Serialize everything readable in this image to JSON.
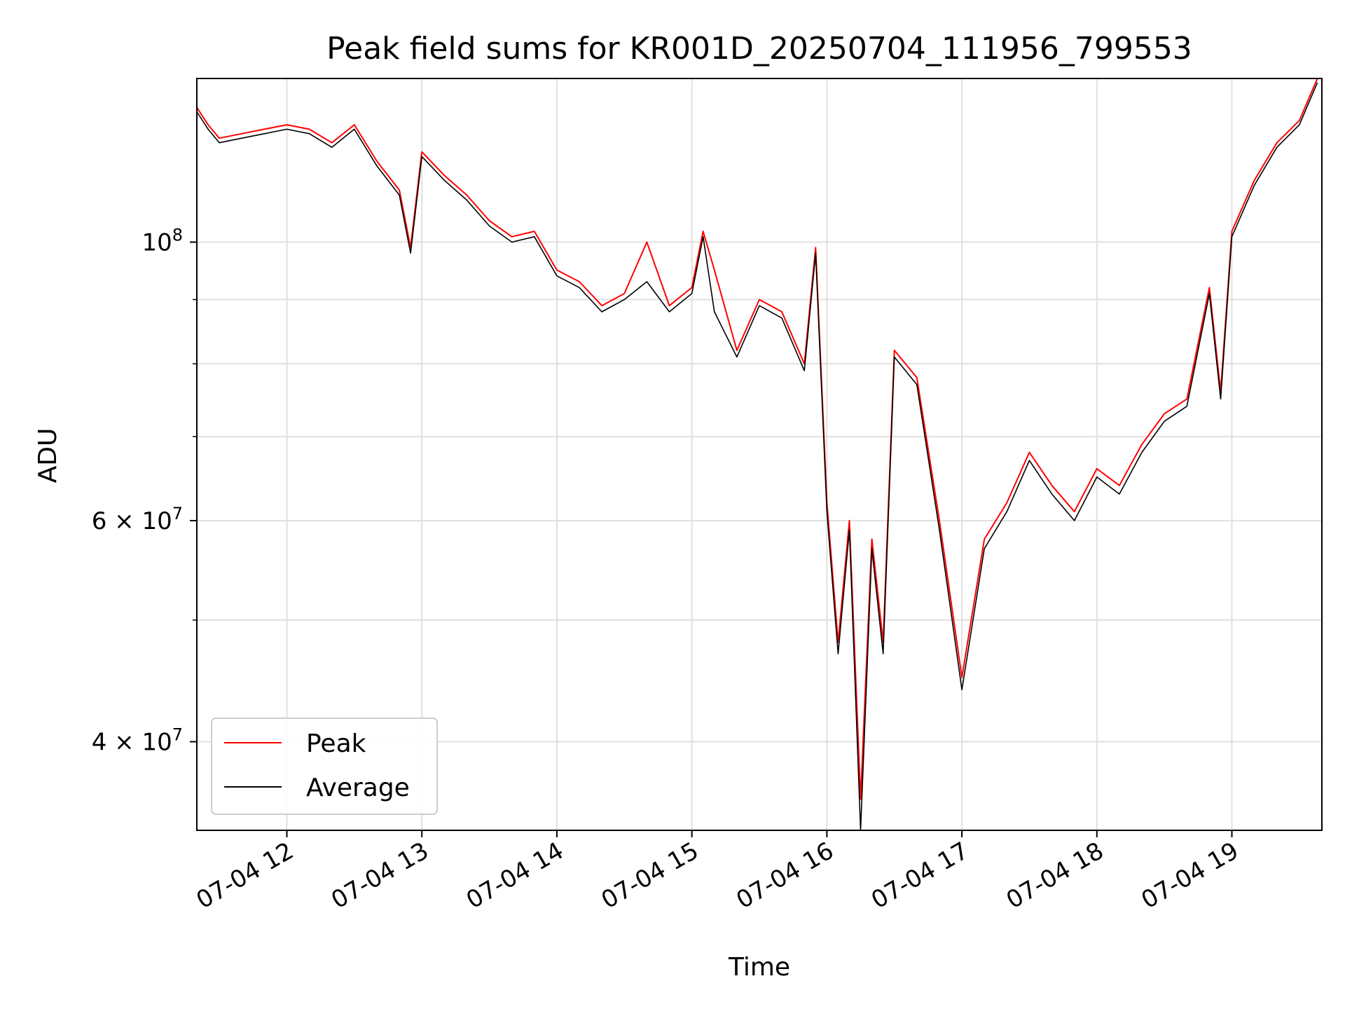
{
  "chart_data": {
    "type": "line",
    "title": "Peak field sums for KR001D_20250704_111956_799553",
    "xlabel": "Time",
    "ylabel": "ADU",
    "x_range": [
      "2025-07-04 11:20",
      "2025-07-04 19:40"
    ],
    "ylim": [
      34000000,
      135000000
    ],
    "y_scale": "log",
    "grid": true,
    "legend_position": "lower-left",
    "x_ticks": [
      {
        "value": "2025-07-04 12:00",
        "label": "07-04 12"
      },
      {
        "value": "2025-07-04 13:00",
        "label": "07-04 13"
      },
      {
        "value": "2025-07-04 14:00",
        "label": "07-04 14"
      },
      {
        "value": "2025-07-04 15:00",
        "label": "07-04 15"
      },
      {
        "value": "2025-07-04 16:00",
        "label": "07-04 16"
      },
      {
        "value": "2025-07-04 17:00",
        "label": "07-04 17"
      },
      {
        "value": "2025-07-04 18:00",
        "label": "07-04 18"
      },
      {
        "value": "2025-07-04 19:00",
        "label": "07-04 19"
      }
    ],
    "y_major_ticks": [
      {
        "value": 40000000,
        "mantissa": "4",
        "base": "10",
        "exp": "7"
      },
      {
        "value": 60000000,
        "mantissa": "6",
        "base": "10",
        "exp": "7"
      },
      {
        "value": 100000000,
        "mantissa": "",
        "base": "10",
        "exp": "8"
      }
    ],
    "y_minor_gridlines": [
      50000000,
      70000000,
      80000000,
      90000000
    ],
    "colors": {
      "peak": "#ff0000",
      "average": "#000000",
      "grid": "#e0e0e0"
    },
    "series": [
      {
        "name": "Peak",
        "color": "#ff0000",
        "x": [
          "2025-07-04 11:20",
          "2025-07-04 11:25",
          "2025-07-04 11:30",
          "2025-07-04 11:40",
          "2025-07-04 11:50",
          "2025-07-04 12:00",
          "2025-07-04 12:10",
          "2025-07-04 12:20",
          "2025-07-04 12:30",
          "2025-07-04 12:40",
          "2025-07-04 12:50",
          "2025-07-04 12:55",
          "2025-07-04 13:00",
          "2025-07-04 13:10",
          "2025-07-04 13:20",
          "2025-07-04 13:30",
          "2025-07-04 13:40",
          "2025-07-04 13:50",
          "2025-07-04 14:00",
          "2025-07-04 14:10",
          "2025-07-04 14:20",
          "2025-07-04 14:30",
          "2025-07-04 14:40",
          "2025-07-04 14:50",
          "2025-07-04 15:00",
          "2025-07-04 15:05",
          "2025-07-04 15:10",
          "2025-07-04 15:20",
          "2025-07-04 15:30",
          "2025-07-04 15:40",
          "2025-07-04 15:50",
          "2025-07-04 15:55",
          "2025-07-04 16:00",
          "2025-07-04 16:05",
          "2025-07-04 16:10",
          "2025-07-04 16:15",
          "2025-07-04 16:20",
          "2025-07-04 16:25",
          "2025-07-04 16:30",
          "2025-07-04 16:40",
          "2025-07-04 16:50",
          "2025-07-04 16:55",
          "2025-07-04 17:00",
          "2025-07-04 17:10",
          "2025-07-04 17:20",
          "2025-07-04 17:30",
          "2025-07-04 17:40",
          "2025-07-04 17:50",
          "2025-07-04 18:00",
          "2025-07-04 18:10",
          "2025-07-04 18:20",
          "2025-07-04 18:30",
          "2025-07-04 18:40",
          "2025-07-04 18:50",
          "2025-07-04 18:55",
          "2025-07-04 19:00",
          "2025-07-04 19:10",
          "2025-07-04 19:20",
          "2025-07-04 19:30",
          "2025-07-04 19:38"
        ],
        "values": [
          128000000,
          124000000,
          121000000,
          122000000,
          123000000,
          124000000,
          123000000,
          120000000,
          124000000,
          116000000,
          110000000,
          99000000,
          118000000,
          113000000,
          109000000,
          104000000,
          101000000,
          102000000,
          95000000,
          93000000,
          89000000,
          91000000,
          100000000,
          89000000,
          92000000,
          102000000,
          95000000,
          82000000,
          90000000,
          88000000,
          80000000,
          99000000,
          62000000,
          48000000,
          60000000,
          36000000,
          58000000,
          48000000,
          82000000,
          78000000,
          60000000,
          52000000,
          45000000,
          58000000,
          62000000,
          68000000,
          64000000,
          61000000,
          66000000,
          64000000,
          69000000,
          73000000,
          75000000,
          92000000,
          76000000,
          102000000,
          112000000,
          120000000,
          125000000,
          135000000
        ]
      },
      {
        "name": "Average",
        "color": "#000000",
        "x": [
          "2025-07-04 11:20",
          "2025-07-04 11:25",
          "2025-07-04 11:30",
          "2025-07-04 11:40",
          "2025-07-04 11:50",
          "2025-07-04 12:00",
          "2025-07-04 12:10",
          "2025-07-04 12:20",
          "2025-07-04 12:30",
          "2025-07-04 12:40",
          "2025-07-04 12:50",
          "2025-07-04 12:55",
          "2025-07-04 13:00",
          "2025-07-04 13:10",
          "2025-07-04 13:20",
          "2025-07-04 13:30",
          "2025-07-04 13:40",
          "2025-07-04 13:50",
          "2025-07-04 14:00",
          "2025-07-04 14:10",
          "2025-07-04 14:20",
          "2025-07-04 14:30",
          "2025-07-04 14:40",
          "2025-07-04 14:50",
          "2025-07-04 15:00",
          "2025-07-04 15:05",
          "2025-07-04 15:10",
          "2025-07-04 15:20",
          "2025-07-04 15:30",
          "2025-07-04 15:40",
          "2025-07-04 15:50",
          "2025-07-04 15:55",
          "2025-07-04 16:00",
          "2025-07-04 16:05",
          "2025-07-04 16:10",
          "2025-07-04 16:15",
          "2025-07-04 16:20",
          "2025-07-04 16:25",
          "2025-07-04 16:30",
          "2025-07-04 16:40",
          "2025-07-04 16:50",
          "2025-07-04 16:55",
          "2025-07-04 17:00",
          "2025-07-04 17:10",
          "2025-07-04 17:20",
          "2025-07-04 17:30",
          "2025-07-04 17:40",
          "2025-07-04 17:50",
          "2025-07-04 18:00",
          "2025-07-04 18:10",
          "2025-07-04 18:20",
          "2025-07-04 18:30",
          "2025-07-04 18:40",
          "2025-07-04 18:50",
          "2025-07-04 18:55",
          "2025-07-04 19:00",
          "2025-07-04 19:10",
          "2025-07-04 19:20",
          "2025-07-04 19:30",
          "2025-07-04 19:38"
        ],
        "values": [
          127000000,
          123000000,
          120000000,
          121000000,
          122000000,
          123000000,
          122000000,
          119000000,
          123000000,
          115000000,
          109000000,
          98000000,
          117000000,
          112000000,
          108000000,
          103000000,
          100000000,
          101000000,
          94000000,
          92000000,
          88000000,
          90000000,
          93000000,
          88000000,
          91000000,
          101000000,
          88000000,
          81000000,
          89000000,
          87000000,
          79000000,
          98000000,
          61000000,
          47000000,
          59000000,
          34000000,
          57000000,
          47000000,
          81000000,
          77000000,
          59000000,
          51000000,
          44000000,
          57000000,
          61000000,
          67000000,
          63000000,
          60000000,
          65000000,
          63000000,
          68000000,
          72000000,
          74000000,
          91000000,
          75000000,
          101000000,
          111000000,
          119000000,
          124000000,
          134000000
        ]
      }
    ]
  }
}
